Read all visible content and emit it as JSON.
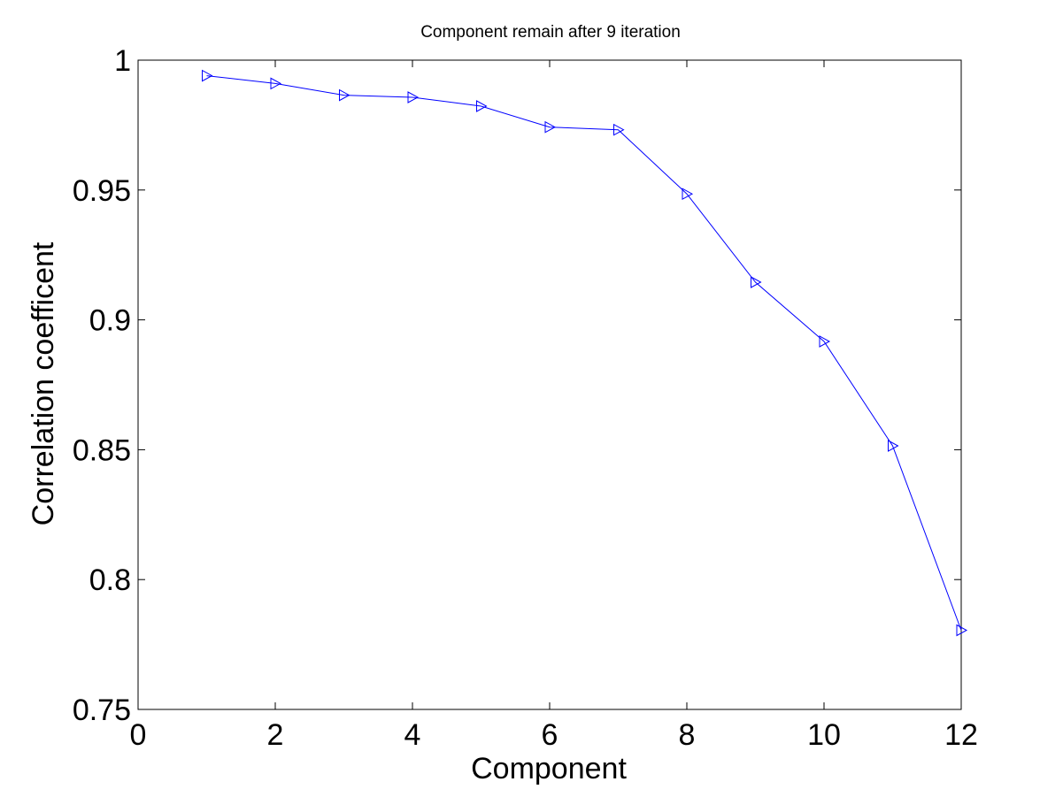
{
  "chart_data": {
    "type": "line",
    "title": "Component remain after 9 iteration",
    "xlabel": "Component",
    "ylabel": "Correlation coefficent",
    "xlim": [
      0,
      12
    ],
    "ylim": [
      0.75,
      1
    ],
    "xticks": [
      0,
      2,
      4,
      6,
      8,
      10,
      12
    ],
    "xtick_labels": [
      "0",
      "2",
      "4",
      "6",
      "8",
      "10",
      "12"
    ],
    "yticks": [
      0.75,
      0.8,
      0.85,
      0.9,
      0.95,
      1
    ],
    "ytick_labels": [
      "0.75",
      "0.8",
      "0.85",
      "0.9",
      "0.95",
      "1"
    ],
    "grid": false,
    "marker": "triangle-right",
    "line_color": "#0000ff",
    "series": [
      {
        "x": [
          1,
          2,
          3,
          4,
          5,
          6,
          7,
          8,
          9,
          10,
          11,
          12
        ],
        "values": [
          0.994,
          0.991,
          0.9865,
          0.9857,
          0.9823,
          0.9742,
          0.9732,
          0.9485,
          0.9145,
          0.8917,
          0.8515,
          0.7805
        ]
      }
    ]
  }
}
